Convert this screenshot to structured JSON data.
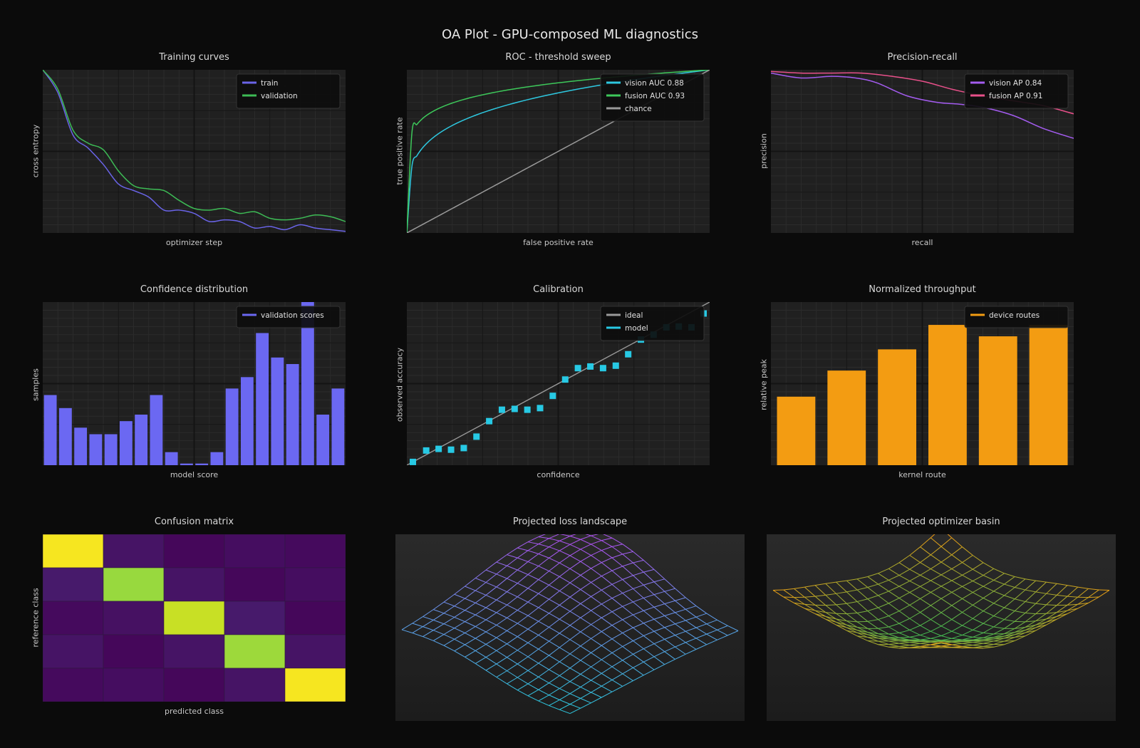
{
  "title": "OA Plot - GPU-composed ML diagnostics",
  "colors": {
    "background": "#0b0b0b",
    "plot_bg": "#202020",
    "grid_minor": "#2b2b2b",
    "grid_major": "#141414",
    "train": "#6a64e8",
    "validation": "#3dbb55",
    "vision": "#2ec8e0",
    "fusion": "#3dc85a",
    "chance": "#9a9a9a",
    "vision_ap": "#a45cf0",
    "fusion_ap": "#e8508a",
    "scores": "#6b68f2",
    "model_marker": "#27c9e4",
    "throughput": "#f39c12"
  },
  "chart_data": [
    {
      "id": "training",
      "type": "line",
      "title": "Training curves",
      "xlabel": "optimizer step",
      "ylabel": "cross entropy",
      "xlim": [
        0,
        1
      ],
      "ylim": [
        0,
        1
      ],
      "legend": "top-right",
      "series": [
        {
          "name": "train",
          "color": "#6a64e8",
          "x": [
            0,
            0.05,
            0.1,
            0.15,
            0.2,
            0.25,
            0.3,
            0.35,
            0.4,
            0.45,
            0.5,
            0.55,
            0.6,
            0.65,
            0.7,
            0.75,
            0.8,
            0.85,
            0.9,
            0.95,
            1
          ],
          "y": [
            1.0,
            0.86,
            0.6,
            0.52,
            0.42,
            0.3,
            0.26,
            0.22,
            0.14,
            0.14,
            0.12,
            0.07,
            0.08,
            0.07,
            0.03,
            0.04,
            0.02,
            0.05,
            0.03,
            0.02,
            0.01
          ]
        },
        {
          "name": "validation",
          "color": "#3dbb55",
          "x": [
            0,
            0.05,
            0.1,
            0.15,
            0.2,
            0.25,
            0.3,
            0.35,
            0.4,
            0.45,
            0.5,
            0.55,
            0.6,
            0.65,
            0.7,
            0.75,
            0.8,
            0.85,
            0.9,
            0.95,
            1
          ],
          "y": [
            1.0,
            0.88,
            0.63,
            0.55,
            0.51,
            0.38,
            0.29,
            0.27,
            0.26,
            0.2,
            0.15,
            0.14,
            0.15,
            0.12,
            0.13,
            0.09,
            0.08,
            0.09,
            0.11,
            0.1,
            0.07
          ]
        }
      ]
    },
    {
      "id": "roc",
      "type": "line",
      "title": "ROC - threshold sweep",
      "xlabel": "false positive rate",
      "ylabel": "true positive rate",
      "xlim": [
        0,
        1
      ],
      "ylim": [
        0,
        1
      ],
      "legend": "top-right",
      "series": [
        {
          "name": "vision AUC 0.88",
          "color": "#2ec8e0",
          "curve_exponent": 0.22
        },
        {
          "name": "fusion AUC 0.93",
          "color": "#3dc85a",
          "curve_exponent": 0.12
        },
        {
          "name": "chance",
          "color": "#9a9a9a",
          "curve_exponent": 1
        }
      ]
    },
    {
      "id": "pr",
      "type": "line",
      "title": "Precision-recall",
      "xlabel": "recall",
      "ylabel": "precision",
      "xlim": [
        0,
        1
      ],
      "ylim": [
        0,
        1
      ],
      "legend": "top-right",
      "series": [
        {
          "name": "vision AP 0.84",
          "color": "#a45cf0",
          "x": [
            0,
            0.1,
            0.2,
            0.28,
            0.35,
            0.45,
            0.55,
            0.62,
            0.7,
            0.8,
            0.9,
            1
          ],
          "y": [
            0.98,
            0.95,
            0.96,
            0.95,
            0.92,
            0.84,
            0.8,
            0.79,
            0.77,
            0.72,
            0.64,
            0.58
          ]
        },
        {
          "name": "fusion AP 0.91",
          "color": "#e8508a",
          "x": [
            0,
            0.1,
            0.2,
            0.3,
            0.4,
            0.5,
            0.6,
            0.7,
            0.8,
            0.9,
            1
          ],
          "y": [
            0.99,
            0.98,
            0.98,
            0.98,
            0.96,
            0.93,
            0.88,
            0.84,
            0.81,
            0.78,
            0.73
          ]
        }
      ]
    },
    {
      "id": "confidence",
      "type": "bar",
      "title": "Confidence distribution",
      "xlabel": "model score",
      "ylabel": "samples",
      "ylim": [
        0,
        1
      ],
      "legend": "top-right",
      "series": [
        {
          "name": "validation scores",
          "color": "#6b68f2",
          "values": [
            0.43,
            0.35,
            0.23,
            0.19,
            0.19,
            0.27,
            0.31,
            0.43,
            0.08,
            0.01,
            0.01,
            0.08,
            0.47,
            0.54,
            0.81,
            0.66,
            0.62,
            1.0,
            0.31,
            0.47
          ]
        }
      ]
    },
    {
      "id": "calibration",
      "type": "scatter",
      "title": "Calibration",
      "xlabel": "confidence",
      "ylabel": "observed accuracy",
      "xlim": [
        0,
        1
      ],
      "ylim": [
        0,
        1
      ],
      "legend": "top-right",
      "series": [
        {
          "name": "ideal",
          "color": "#9a9a9a",
          "x": [
            0,
            1
          ],
          "y": [
            0,
            1
          ]
        },
        {
          "name": "model",
          "color": "#27c9e4",
          "x": [
            0.02,
            0.064,
            0.105,
            0.146,
            0.188,
            0.23,
            0.272,
            0.314,
            0.356,
            0.398,
            0.44,
            0.482,
            0.523,
            0.565,
            0.606,
            0.648,
            0.69,
            0.731,
            0.773,
            0.815,
            0.857,
            0.898,
            0.94,
            0.98
          ],
          "y": [
            0.02,
            0.09,
            0.1,
            0.095,
            0.105,
            0.175,
            0.27,
            0.34,
            0.345,
            0.34,
            0.35,
            0.425,
            0.525,
            0.595,
            0.605,
            0.595,
            0.61,
            0.68,
            0.77,
            0.8,
            0.845,
            0.85,
            0.845,
            0.93
          ]
        }
      ]
    },
    {
      "id": "throughput",
      "type": "bar",
      "title": "Normalized throughput",
      "xlabel": "kernel route",
      "ylabel": "relative peak",
      "ylim": [
        0,
        1
      ],
      "legend": "top-right",
      "series": [
        {
          "name": "device routes",
          "color": "#f39c12",
          "values": [
            0.42,
            0.58,
            0.71,
            0.86,
            0.79,
            0.86
          ]
        }
      ]
    },
    {
      "id": "confusion",
      "type": "heatmap",
      "title": "Confusion matrix",
      "xlabel": "predicted class",
      "ylabel": "reference class",
      "matrix": [
        [
          1.0,
          0.12,
          0.04,
          0.08,
          0.06
        ],
        [
          0.16,
          0.82,
          0.12,
          0.04,
          0.08
        ],
        [
          0.06,
          0.1,
          0.92,
          0.16,
          0.04
        ],
        [
          0.12,
          0.04,
          0.12,
          0.83,
          0.12
        ],
        [
          0.06,
          0.08,
          0.04,
          0.12,
          1.0
        ]
      ]
    },
    {
      "id": "loss_landscape",
      "type": "surface",
      "title": "Projected loss landscape",
      "grid": 16,
      "color_low": "#2ec8e0",
      "color_high": "#a45cf0"
    },
    {
      "id": "optimizer_basin",
      "type": "surface",
      "title": "Projected optimizer basin",
      "grid": 16,
      "color_low": "#3dbb55",
      "color_high": "#f39c12"
    }
  ]
}
